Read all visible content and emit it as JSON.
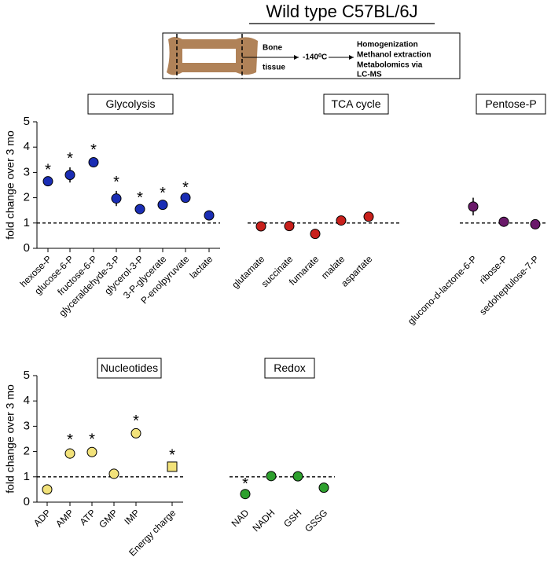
{
  "figure_title": "Wild type C57BL/6J",
  "schematic": {
    "tissue_label": [
      "Bone",
      "tissue"
    ],
    "temperature": "-140⁰C",
    "steps": [
      "Homogenization",
      "Methanol extraction",
      "Metabolomics via",
      "LC-MS"
    ]
  },
  "chart_data": [
    {
      "type": "dot",
      "title": "Glycolysis",
      "ylabel": "fold change over 3 mo",
      "categories": [
        "hexose-P",
        "glucose-6-P",
        "fructose-6-P",
        "glyceraldehyde-3-P",
        "glycerol-3-P",
        "3-P-glycerate",
        "P-enolpyruvate",
        "lactate"
      ],
      "values": [
        2.65,
        2.9,
        3.4,
        1.97,
        1.55,
        1.72,
        2.0,
        1.3
      ],
      "errors": [
        0.1,
        0.3,
        0.15,
        0.3,
        0.1,
        0.12,
        0.06,
        0.06
      ],
      "significance": [
        "*",
        "*",
        "*",
        "*",
        "*",
        "*",
        "*",
        null
      ],
      "color": "#1a2db4",
      "ylim": [
        0,
        5
      ],
      "yticks": [
        0,
        1,
        2,
        3,
        4,
        5
      ],
      "reference_line": 1
    },
    {
      "type": "dot",
      "title": "TCA cycle",
      "categories": [
        "glutamate",
        "succinate",
        "fumarate",
        "malate",
        "aspartate"
      ],
      "values": [
        0.87,
        0.88,
        0.57,
        1.1,
        1.25
      ],
      "errors": [
        0.06,
        0.05,
        0.1,
        0.08,
        0.08
      ],
      "color": "#c8201c",
      "ylim": [
        0,
        5
      ],
      "reference_line": 1
    },
    {
      "type": "dot",
      "title": "Pentose-P",
      "categories": [
        "glucono-d-lactone-6-P",
        "ribose-P",
        "sedoheptulose-7-P"
      ],
      "values": [
        1.65,
        1.05,
        0.95
      ],
      "errors": [
        0.35,
        0.06,
        0.06
      ],
      "color": "#6a1a6a",
      "ylim": [
        0,
        5
      ],
      "reference_line": 1
    },
    {
      "type": "dot",
      "title": "Nucleotides",
      "ylabel": "fold change over 3 mo",
      "categories": [
        "ADP",
        "AMP",
        "ATP",
        "GMP",
        "IMP",
        "Energy charge"
      ],
      "values": [
        0.5,
        1.92,
        1.98,
        1.12,
        2.72,
        1.4
      ],
      "errors": [
        0.12,
        0.2,
        0.15,
        0.08,
        0.15,
        0.12
      ],
      "significance": [
        null,
        "*",
        "*",
        null,
        "*",
        "*"
      ],
      "markers": [
        "circle",
        "circle",
        "circle",
        "circle",
        "circle",
        "square"
      ],
      "color": "#f2e27a",
      "ylim": [
        0,
        5
      ],
      "yticks": [
        0,
        1,
        2,
        3,
        4,
        5
      ],
      "reference_line": 1
    },
    {
      "type": "dot",
      "title": "Redox",
      "categories": [
        "NAD",
        "NADH",
        "GSH",
        "GSSG"
      ],
      "values": [
        0.32,
        1.03,
        1.02,
        0.57
      ],
      "errors": [
        0.06,
        0.06,
        0.05,
        0.05
      ],
      "significance": [
        "*",
        null,
        null,
        null
      ],
      "color": "#2ea02e",
      "ylim": [
        0,
        5
      ],
      "reference_line": 1
    }
  ]
}
